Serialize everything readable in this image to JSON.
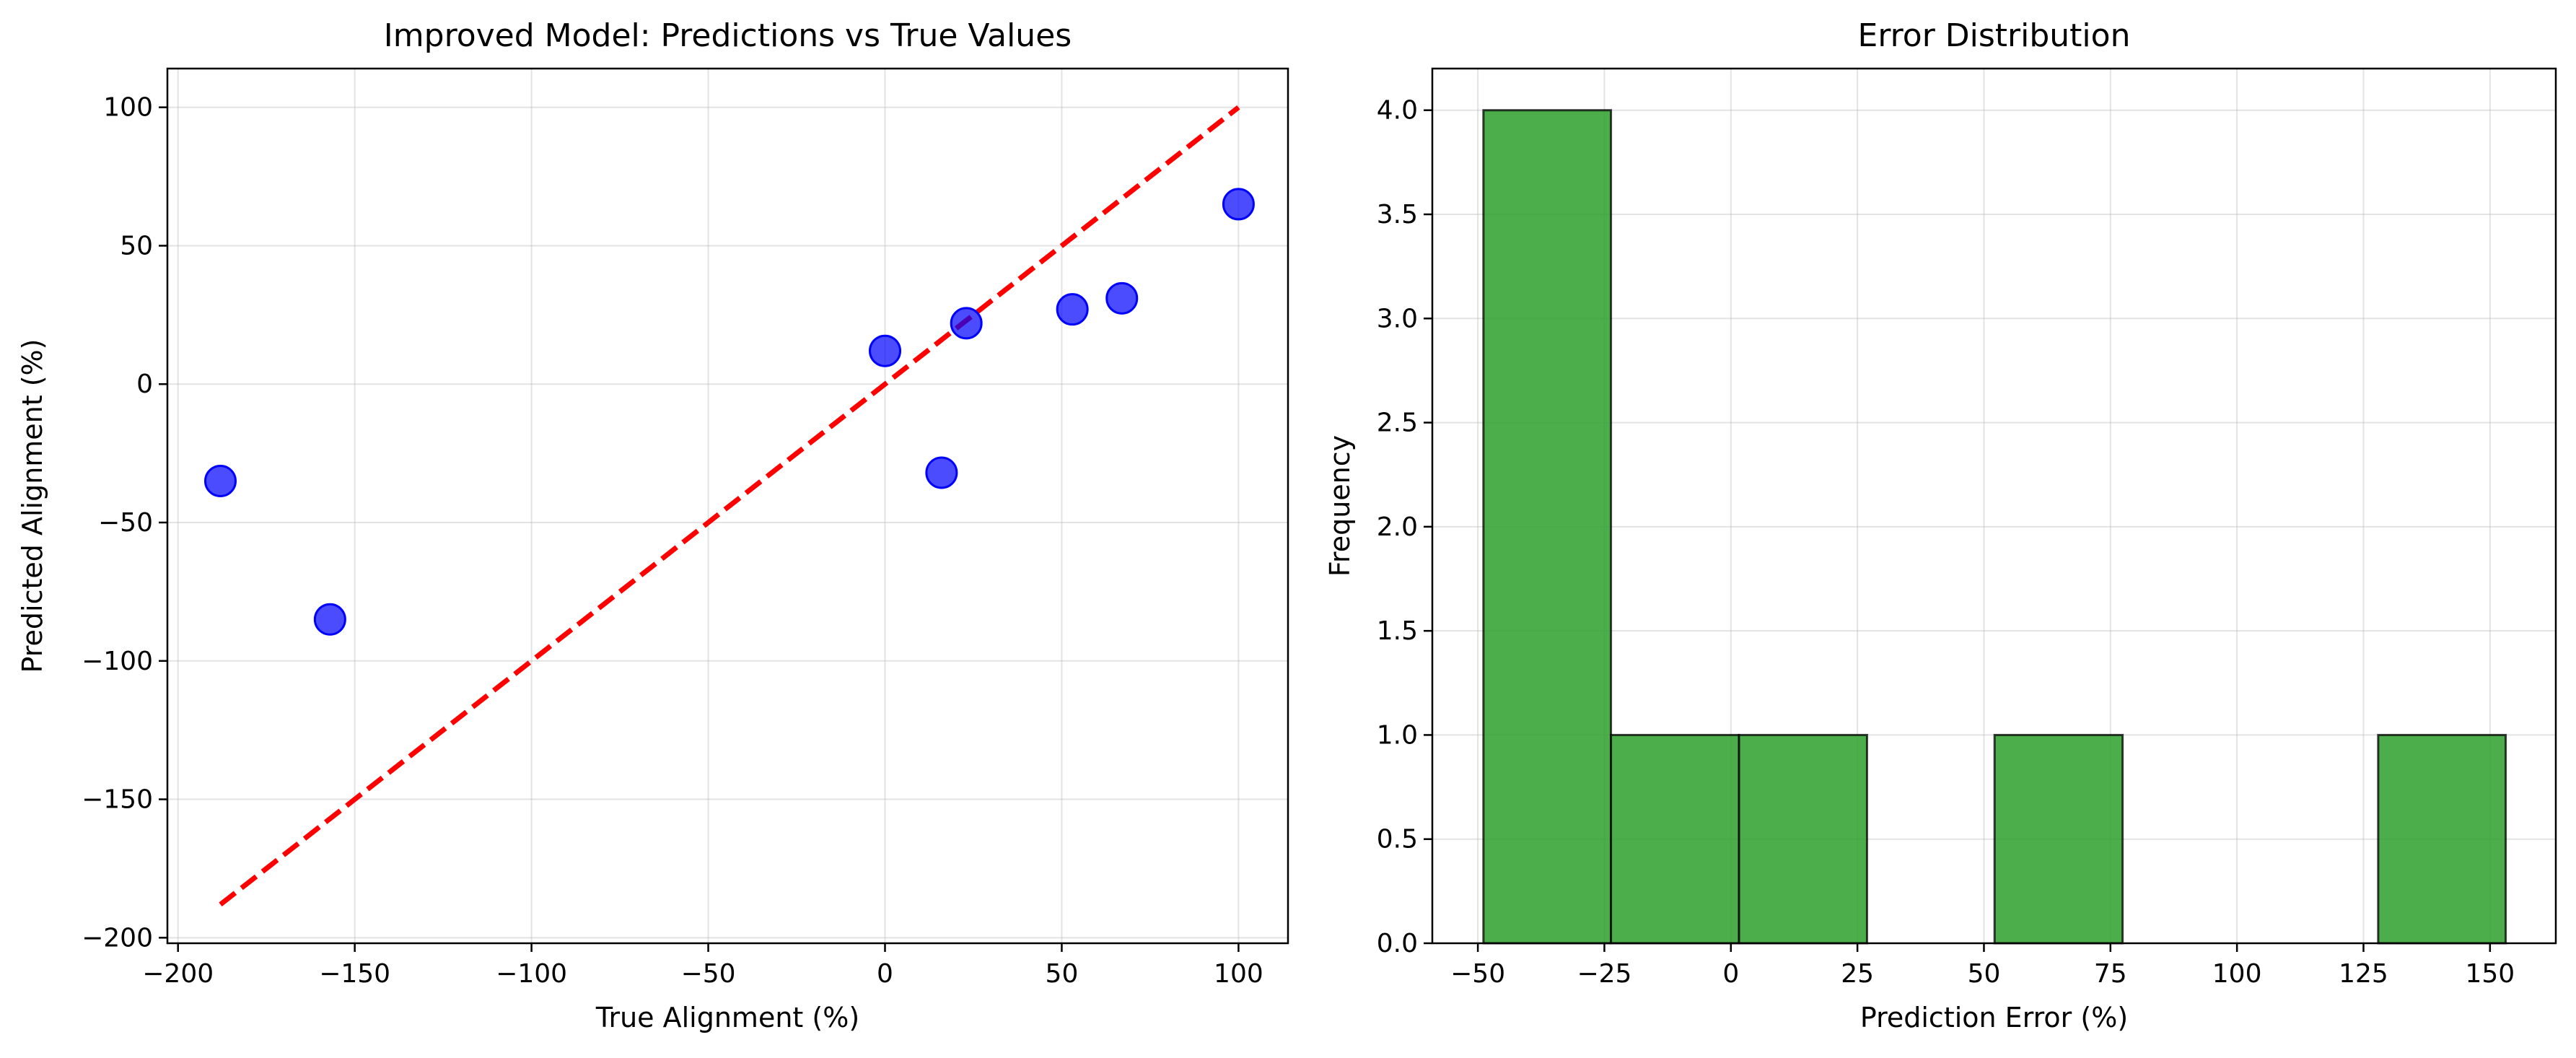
{
  "chart_data": [
    {
      "type": "scatter",
      "title": "Improved Model: Predictions vs True Values",
      "xlabel": "True Alignment (%)",
      "ylabel": "Predicted Alignment (%)",
      "xlim": [
        -203,
        114
      ],
      "ylim": [
        -202,
        114
      ],
      "xticks": [
        -200,
        -150,
        -100,
        -50,
        0,
        50,
        100
      ],
      "yticks": [
        -200,
        -150,
        -100,
        -50,
        0,
        50,
        100
      ],
      "grid": true,
      "points": [
        {
          "x": -188,
          "y": -35
        },
        {
          "x": -157,
          "y": -85
        },
        {
          "x": 0,
          "y": 12
        },
        {
          "x": 16,
          "y": -32
        },
        {
          "x": 23,
          "y": 22
        },
        {
          "x": 53,
          "y": 27
        },
        {
          "x": 67,
          "y": 31
        },
        {
          "x": 100,
          "y": 65
        }
      ],
      "point_color": "#0000ff",
      "reference_line": {
        "x": [
          -188,
          100
        ],
        "y": [
          -188,
          100
        ],
        "color": "#ff0000",
        "style": "dashed"
      }
    },
    {
      "type": "bar",
      "title": "Error Distribution",
      "xlabel": "Prediction Error (%)",
      "ylabel": "Frequency",
      "xlim": [
        -59,
        163
      ],
      "ylim": [
        0,
        4.2
      ],
      "xticks": [
        -50,
        -25,
        0,
        25,
        50,
        75,
        100,
        125,
        150
      ],
      "yticks": [
        0.0,
        0.5,
        1.0,
        1.5,
        2.0,
        2.5,
        3.0,
        3.5,
        4.0
      ],
      "grid": true,
      "bin_edges": [
        -48.9,
        -23.7,
        1.6,
        26.9,
        52.1,
        77.4,
        102.6,
        127.9,
        153.1
      ],
      "values": [
        4,
        1,
        1,
        0,
        1,
        0,
        0,
        1
      ],
      "bar_color": "#2ca02c"
    }
  ]
}
